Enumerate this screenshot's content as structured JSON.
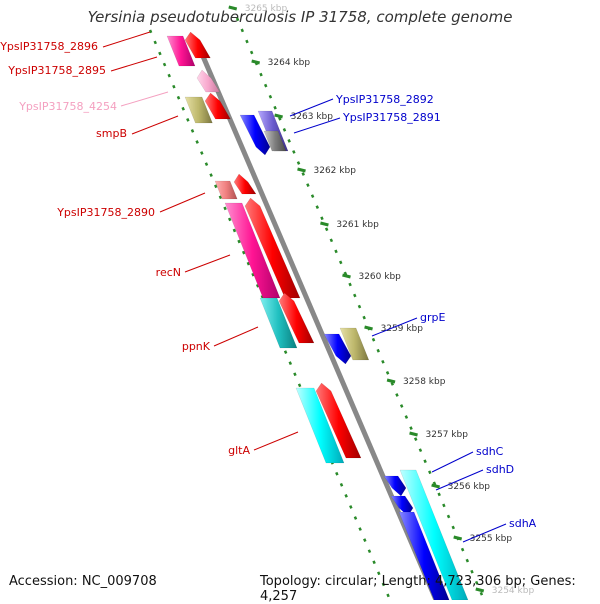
{
  "title": "Yersinia pseudotuberculosis IP 31758, complete genome",
  "footer": {
    "accession": "Accession: NC_009708",
    "topology": "Topology: circular; Length: 4,723,306 bp; Genes: 4,257"
  },
  "colors": {
    "backbone": "#888888",
    "ticks": "#2a8a2a",
    "forward_labels": "#cc0000",
    "reverse_labels": "#0000cc",
    "faded_label": "#f4a0c0",
    "tick_text": "#333333"
  },
  "kbp_ticks": [
    {
      "label": "3265 kbp",
      "faded": true
    },
    {
      "label": "3264 kbp"
    },
    {
      "label": "3263 kbp"
    },
    {
      "label": "3262 kbp"
    },
    {
      "label": "3261 kbp"
    },
    {
      "label": "3260 kbp"
    },
    {
      "label": "3259 kbp"
    },
    {
      "label": "3258 kbp"
    },
    {
      "label": "3257 kbp"
    },
    {
      "label": "3256 kbp"
    },
    {
      "label": "3255 kbp"
    },
    {
      "label": "3254 kbp",
      "faded": true
    }
  ],
  "forward_genes": [
    {
      "label": "YpsIP31758_2896",
      "color": "#cc0000"
    },
    {
      "label": "YpsIP31758_2895",
      "color": "#cc0000"
    },
    {
      "label": "YpsIP31758_4254",
      "color": "#f4a0c0"
    },
    {
      "label": "smpB",
      "color": "#cc0000"
    },
    {
      "label": "YpsIP31758_2890",
      "color": "#cc0000"
    },
    {
      "label": "recN",
      "color": "#cc0000"
    },
    {
      "label": "ppnK",
      "color": "#cc0000"
    },
    {
      "label": "gltA",
      "color": "#cc0000"
    }
  ],
  "reverse_genes": [
    {
      "label": "YpsIP31758_2892"
    },
    {
      "label": "YpsIP31758_2891"
    },
    {
      "label": "grpE"
    },
    {
      "label": "sdhC"
    },
    {
      "label": "sdhD"
    },
    {
      "label": "sdhA"
    }
  ]
}
